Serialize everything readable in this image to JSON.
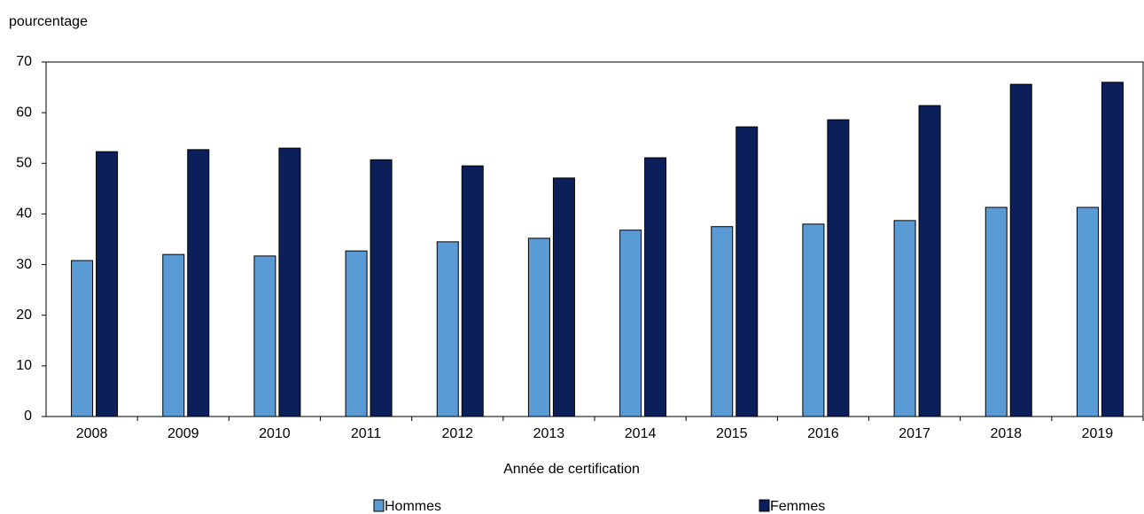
{
  "chart_data": {
    "type": "bar",
    "y_axis_label": "pourcentage",
    "x_axis_label": "Année de certification",
    "categories": [
      "2008",
      "2009",
      "2010",
      "2011",
      "2012",
      "2013",
      "2014",
      "2015",
      "2016",
      "2017",
      "2018",
      "2019"
    ],
    "series": [
      {
        "name": "Hommes",
        "color": "#5b9bd5",
        "values": [
          30.8,
          32.0,
          31.7,
          32.7,
          34.5,
          35.2,
          36.8,
          37.5,
          38.0,
          38.7,
          41.3,
          41.3
        ]
      },
      {
        "name": "Femmes",
        "color": "#0b1f5a",
        "values": [
          52.3,
          52.7,
          53.0,
          50.7,
          49.5,
          47.1,
          51.1,
          57.2,
          58.6,
          61.4,
          65.6,
          66.0
        ]
      }
    ],
    "ylim": [
      0,
      70
    ],
    "yticks": [
      0,
      10,
      20,
      30,
      40,
      50,
      60,
      70
    ]
  }
}
